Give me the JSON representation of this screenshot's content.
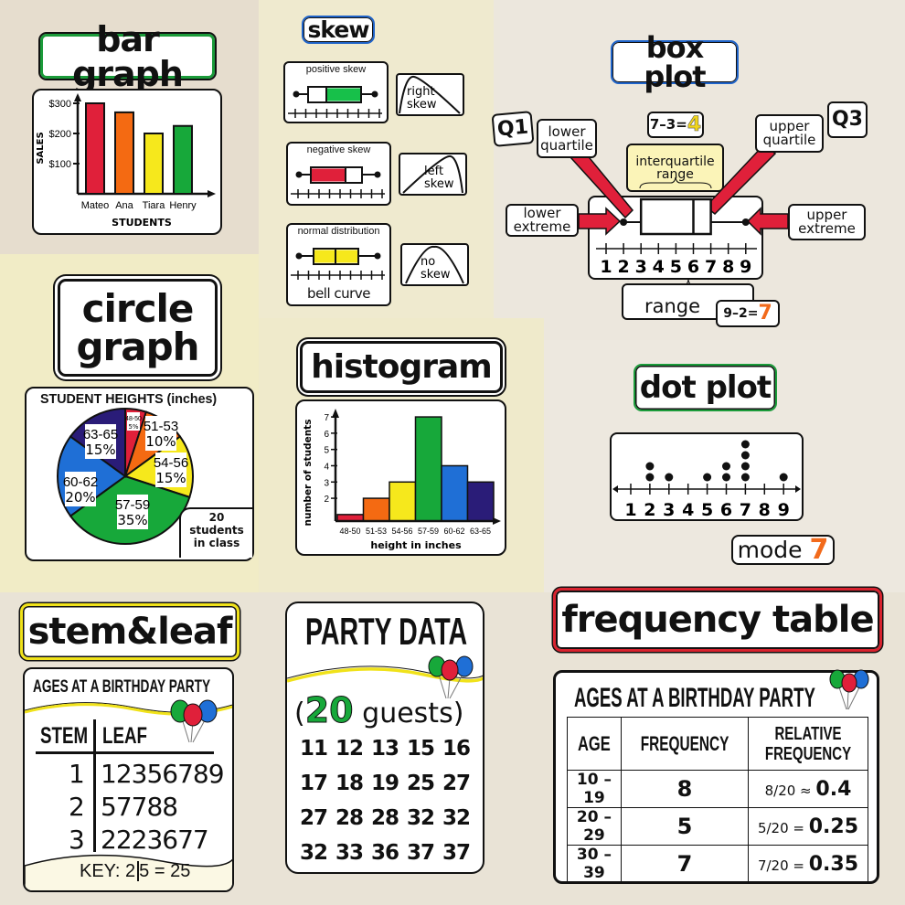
{
  "colors": {
    "red": "#e0203a",
    "orange": "#f46a12",
    "yellow": "#f6e81c",
    "green": "#17a83a",
    "blue": "#1f6fd6",
    "indigo": "#2a1c78",
    "title_green": "#1b9b3a",
    "title_blue": "#1e63c9",
    "title_yellow": "#f0e21a",
    "title_red": "#d8232f",
    "number_orange": "#f26a1b",
    "number_yellow": "#f2d61a"
  },
  "bar_graph": {
    "title": "bar graph"
  },
  "skew": {
    "title": "skew",
    "cards": [
      {
        "label": "positive skew",
        "curve_label": [
          "right",
          "skew"
        ]
      },
      {
        "label": "negative skew",
        "curve_label": [
          "left",
          "skew"
        ]
      },
      {
        "label": "normal distribution",
        "sublabel": "bell curve",
        "curve_label": [
          "no",
          "skew"
        ]
      }
    ]
  },
  "box_plot": {
    "title": "box plot",
    "q1": "Q1",
    "q1_label": [
      "lower",
      "quartile"
    ],
    "q3": "Q3",
    "q3_label": [
      "upper",
      "quartile"
    ],
    "iqr_calc": "7–3=",
    "iqr_value": "4",
    "iqr_label": [
      "interquartile",
      "range"
    ],
    "lower_extreme": [
      "lower",
      "extreme"
    ],
    "upper_extreme": [
      "upper",
      "extreme"
    ],
    "range_label": "range",
    "range_calc": "9–2=",
    "range_value": "7"
  },
  "circle_graph": {
    "title": [
      "circle",
      "graph"
    ],
    "note": [
      "20",
      "students",
      "in class"
    ]
  },
  "histogram": {
    "title": "histogram"
  },
  "dot_plot": {
    "title": "dot plot",
    "mode_label": "mode",
    "mode_value": "7"
  },
  "stem_leaf": {
    "title": "stem&leaf",
    "heading": "AGES AT A BIRTHDAY PARTY",
    "col_stem": "STEM",
    "col_leaf": "LEAF",
    "rows": [
      {
        "stem": "1",
        "leaf": "12356789"
      },
      {
        "stem": "2",
        "leaf": "57788"
      },
      {
        "stem": "3",
        "leaf": "2223677"
      }
    ],
    "key_label": "KEY:",
    "key_stem": "2",
    "key_leaf": "5 = 25"
  },
  "party_data": {
    "title": "PARTY DATA",
    "open": "(",
    "count": "20",
    "guests": "guests)",
    "values": [
      "11",
      "12",
      "13",
      "15",
      "16",
      "17",
      "18",
      "19",
      "25",
      "27",
      "27",
      "28",
      "28",
      "32",
      "32",
      "32",
      "33",
      "36",
      "37",
      "37"
    ]
  },
  "frequency_table": {
    "title": "frequency table",
    "heading": "AGES AT A BIRTHDAY PARTY",
    "headers": [
      "AGE",
      "FREQUENCY",
      "RELATIVE FREQUENCY"
    ],
    "rows": [
      {
        "age": "10 – 19",
        "freq": "8",
        "calc": "8/20 ≈ ",
        "rel": "0.4"
      },
      {
        "age": "20 – 29",
        "freq": "5",
        "calc": "5/20 = ",
        "rel": "0.25"
      },
      {
        "age": "30 – 39",
        "freq": "7",
        "calc": "7/20 = ",
        "rel": "0.35"
      }
    ]
  },
  "chart_data": [
    {
      "type": "bar",
      "ylabel": "SALES",
      "xlabel": "STUDENTS",
      "categories": [
        "Mateo",
        "Ana",
        "Tiara",
        "Henry"
      ],
      "values": [
        300,
        270,
        200,
        225
      ],
      "yticks": [
        "$100",
        "$200",
        "$300"
      ],
      "ytick_values": [
        100,
        200,
        300
      ],
      "bar_colors": [
        "#e0203a",
        "#f46a12",
        "#f6e81c",
        "#17a83a"
      ],
      "grid": false
    },
    {
      "type": "pie",
      "title": "STUDENT HEIGHTS (inches)",
      "slices": [
        {
          "label": "48-50",
          "value": 5,
          "text": "5%",
          "color": "#e0203a"
        },
        {
          "label": "51-53",
          "value": 10,
          "text": "10%",
          "color": "#f46a12"
        },
        {
          "label": "54-56",
          "value": 15,
          "text": "15%",
          "color": "#f6e81c"
        },
        {
          "label": "57-59",
          "value": 35,
          "text": "35%",
          "color": "#17a83a"
        },
        {
          "label": "60-62",
          "value": 20,
          "text": "20%",
          "color": "#1f6fd6"
        },
        {
          "label": "63-65",
          "value": 15,
          "text": "15%",
          "color": "#2a1c78"
        }
      ]
    },
    {
      "type": "bar",
      "subtype": "histogram",
      "ylabel": "number of students",
      "xlabel": "height in inches",
      "categories": [
        "48-50",
        "51-53",
        "54-56",
        "57-59",
        "60-62",
        "63-65"
      ],
      "values": [
        1,
        2,
        3,
        7,
        4,
        3
      ],
      "yticks": [
        "2",
        "3",
        "4",
        "5",
        "6",
        "7"
      ],
      "bar_colors": [
        "#e0203a",
        "#f46a12",
        "#f6e81c",
        "#17a83a",
        "#1f6fd6",
        "#2a1c78"
      ],
      "grid": false
    },
    {
      "type": "scatter",
      "subtype": "dot plot",
      "x_ticks": [
        "1",
        "2",
        "3",
        "4",
        "5",
        "6",
        "7",
        "8",
        "9"
      ],
      "counts": {
        "2": 2,
        "3": 1,
        "5": 1,
        "6": 2,
        "7": 4,
        "9": 1
      }
    },
    {
      "type": "box",
      "x_ticks": [
        "1",
        "2",
        "3",
        "4",
        "5",
        "6",
        "7",
        "8",
        "9"
      ],
      "min": 2,
      "q1": 3,
      "median": 6,
      "q3": 7,
      "max": 9
    }
  ]
}
